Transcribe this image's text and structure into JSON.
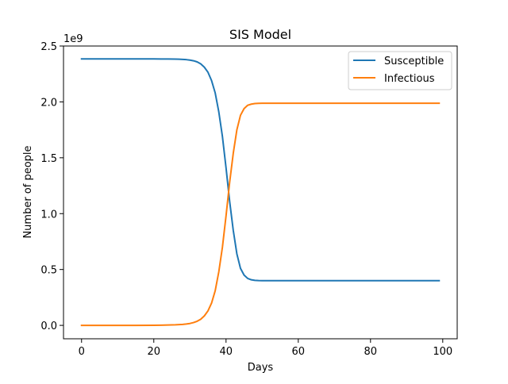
{
  "chart_data": {
    "type": "line",
    "title": "SIS Model",
    "xlabel": "Days",
    "ylabel": "Number of people",
    "offset_label": "1e9",
    "xlim": [
      -5,
      104
    ],
    "ylim": [
      -0.12,
      2.5
    ],
    "y_scale_factor": 1000000000,
    "xticks": [
      0,
      20,
      40,
      60,
      80,
      100
    ],
    "xtick_labels": [
      "0",
      "20",
      "40",
      "60",
      "80",
      "100"
    ],
    "yticks": [
      0.0,
      0.5,
      1.0,
      1.5,
      2.0,
      2.5
    ],
    "ytick_labels": [
      "0.0",
      "0.5",
      "1.0",
      "1.5",
      "2.0",
      "2.5"
    ],
    "grid": false,
    "legend_position": "top-right",
    "x": [
      0,
      5,
      10,
      15,
      20,
      22,
      24,
      26,
      27,
      28,
      29,
      30,
      31,
      32,
      33,
      34,
      35,
      36,
      37,
      38,
      39,
      40,
      41,
      42,
      43,
      44,
      45,
      46,
      47,
      48,
      49,
      50,
      55,
      60,
      70,
      80,
      90,
      99
    ],
    "series": [
      {
        "name": "Susceptible",
        "color": "#1f77b4",
        "values": [
          2.385,
          2.385,
          2.385,
          2.385,
          2.385,
          2.384,
          2.384,
          2.383,
          2.382,
          2.38,
          2.378,
          2.374,
          2.368,
          2.358,
          2.34,
          2.31,
          2.265,
          2.19,
          2.08,
          1.91,
          1.69,
          1.41,
          1.11,
          0.85,
          0.64,
          0.51,
          0.45,
          0.42,
          0.408,
          0.403,
          0.401,
          0.4,
          0.4,
          0.4,
          0.4,
          0.4,
          0.4,
          0.4
        ]
      },
      {
        "name": "Infectious",
        "color": "#ff7f0e",
        "values": [
          0.0,
          0.0,
          0.0,
          0.0,
          0.001,
          0.002,
          0.003,
          0.005,
          0.007,
          0.009,
          0.012,
          0.017,
          0.025,
          0.037,
          0.055,
          0.085,
          0.13,
          0.2,
          0.31,
          0.48,
          0.7,
          0.98,
          1.28,
          1.54,
          1.75,
          1.88,
          1.94,
          1.97,
          1.98,
          1.985,
          1.987,
          1.988,
          1.988,
          1.988,
          1.988,
          1.988,
          1.988,
          1.988
        ]
      }
    ]
  }
}
